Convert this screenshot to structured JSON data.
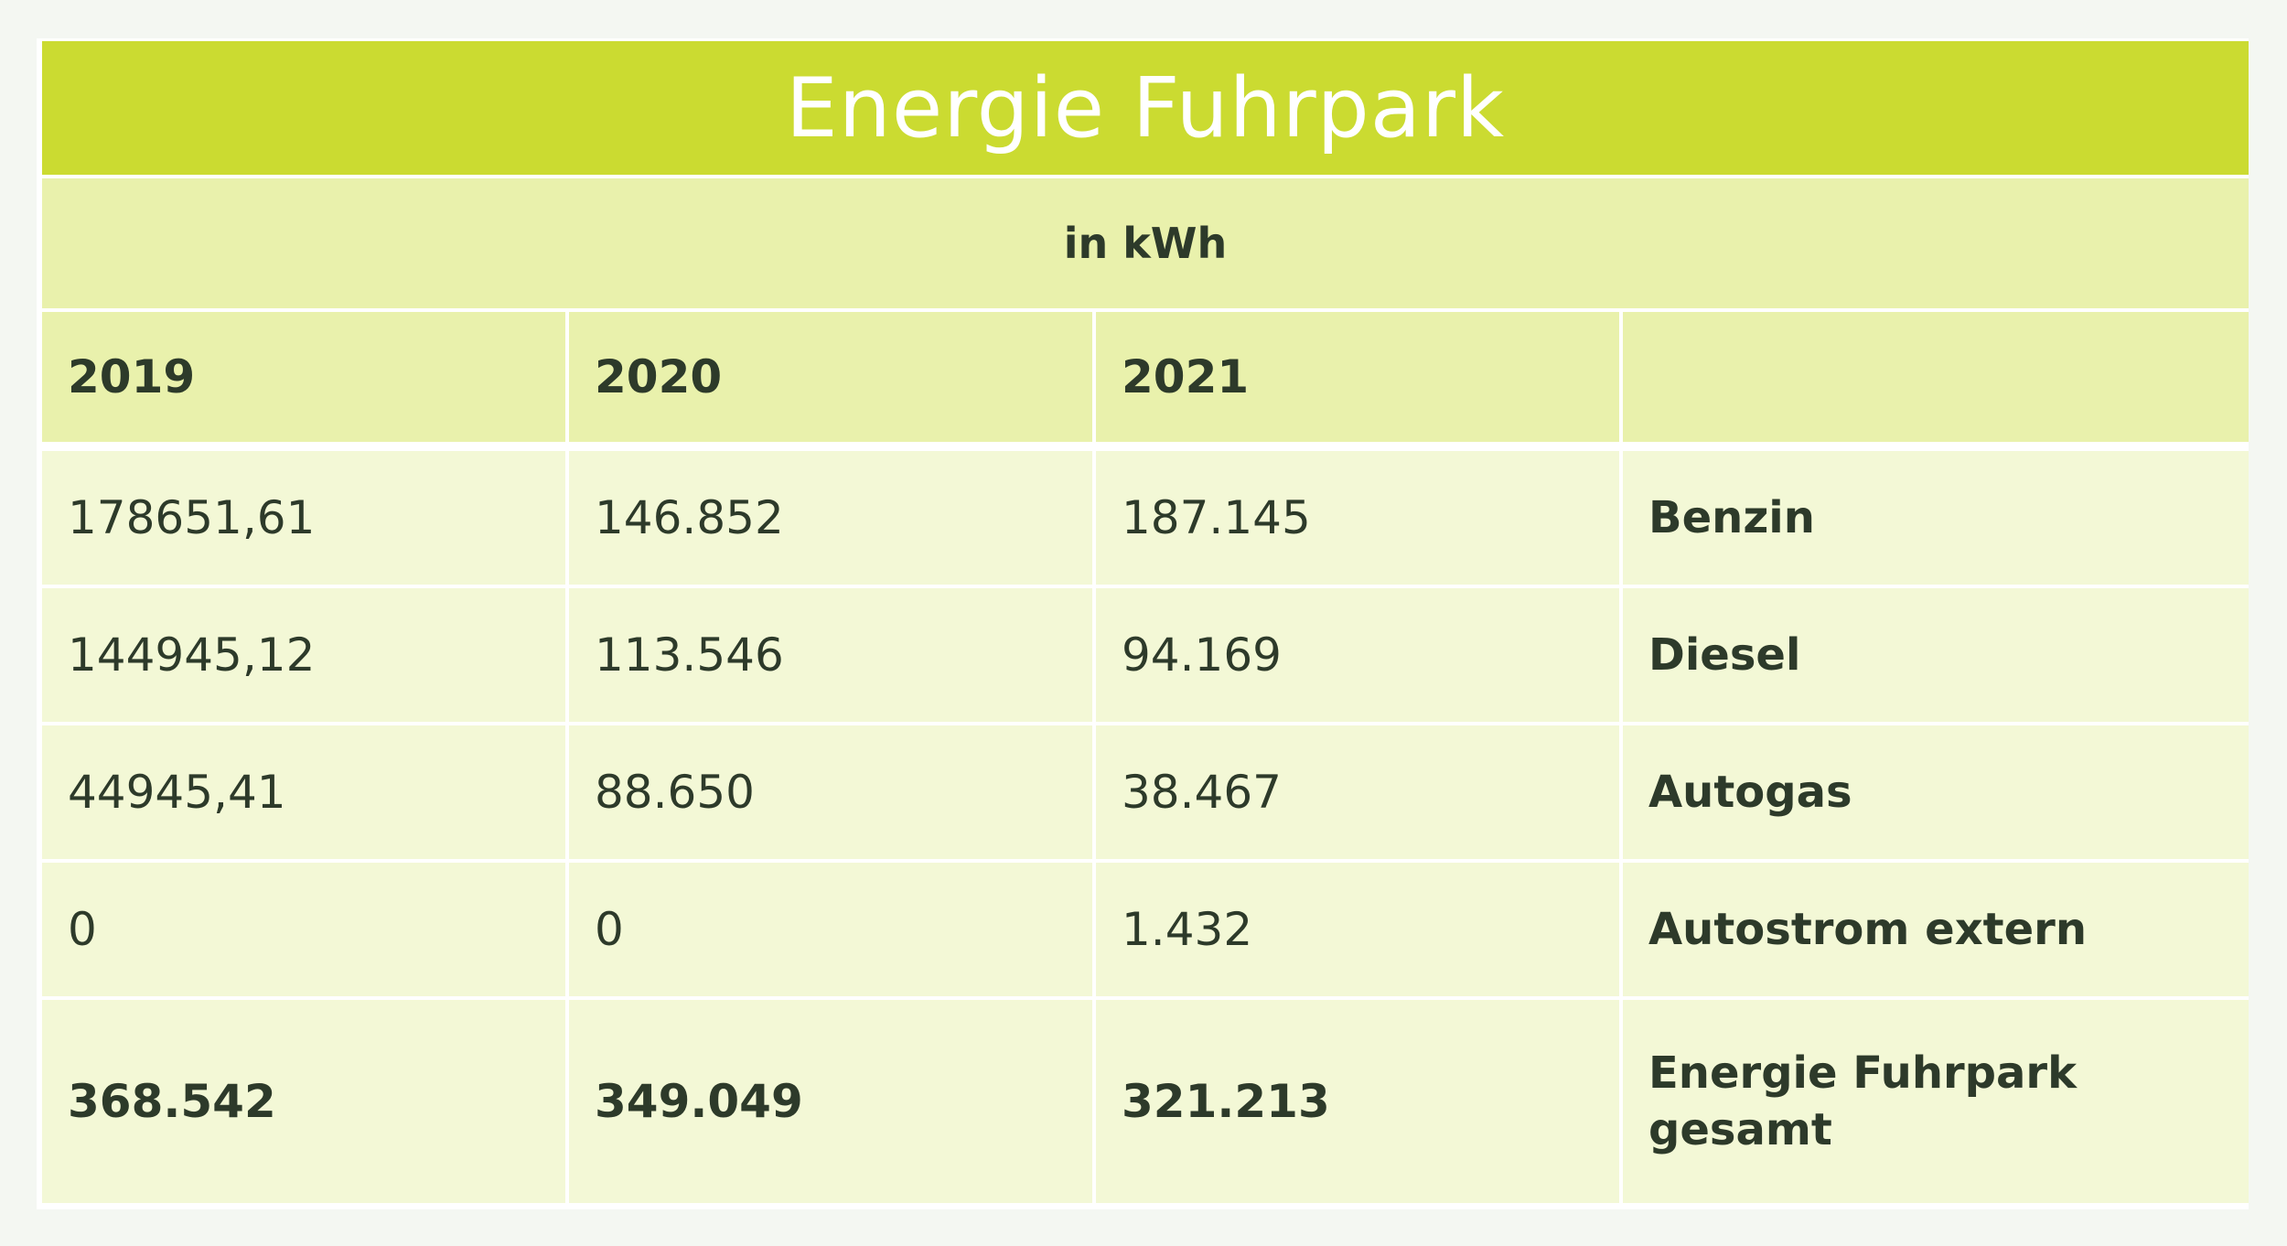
{
  "title": "Energie Fuhrpark",
  "unit": "in kWh",
  "columns": [
    "2019",
    "2020",
    "2021",
    ""
  ],
  "rows": [
    {
      "v2019": "178651,61",
      "v2020": "146.852",
      "v2021": "187.145",
      "label": "Benzin"
    },
    {
      "v2019": "144945,12",
      "v2020": "113.546",
      "v2021": "94.169",
      "label": "Diesel"
    },
    {
      "v2019": "44945,41",
      "v2020": "88.650",
      "v2021": "38.467",
      "label": "Autogas"
    },
    {
      "v2019": "0",
      "v2020": "0",
      "v2021": "1.432",
      "label": "Autostrom extern"
    }
  ],
  "total": {
    "v2019": "368.542",
    "v2020": "349.049",
    "v2021": "321.213",
    "label_line1": "Energie Fuhrpark",
    "label_line2": "gesamt"
  },
  "colors": {
    "title_bg": "#cbdb31",
    "header_bg": "#e9f1ac",
    "row_bg": "#f3f8d6",
    "text": "#2d3a2a"
  }
}
